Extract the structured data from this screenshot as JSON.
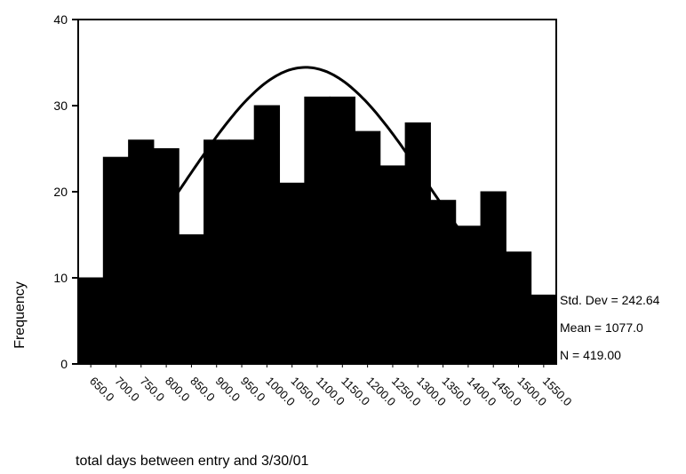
{
  "chart_data": {
    "type": "histogram",
    "x_label": "total days between entry and 3/30/01",
    "y_label": "Frequency",
    "bins": [
      625,
      675,
      725,
      775,
      825,
      875,
      925,
      975,
      1025,
      1075,
      1125,
      1175,
      1225,
      1275,
      1325,
      1375,
      1425,
      1475,
      1525,
      1575
    ],
    "values": [
      10,
      24,
      26,
      25,
      15,
      26,
      26,
      30,
      21,
      31,
      31,
      27,
      23,
      28,
      19,
      16,
      20,
      13,
      8
    ],
    "color": "#000000",
    "xlim": [
      625,
      1575
    ],
    "xticks": [
      {
        "value": 650,
        "label": "650.0"
      },
      {
        "value": 700,
        "label": "700.0"
      },
      {
        "value": 750,
        "label": "750.0"
      },
      {
        "value": 800,
        "label": "800.0"
      },
      {
        "value": 850,
        "label": "850.0"
      },
      {
        "value": 900,
        "label": "900.0"
      },
      {
        "value": 950,
        "label": "950.0"
      },
      {
        "value": 1000,
        "label": "1000.0"
      },
      {
        "value": 1050,
        "label": "1050.0"
      },
      {
        "value": 1100,
        "label": "1100.0"
      },
      {
        "value": 1150,
        "label": "1150.0"
      },
      {
        "value": 1200,
        "label": "1200.0"
      },
      {
        "value": 1250,
        "label": "1250.0"
      },
      {
        "value": 1300,
        "label": "1300.0"
      },
      {
        "value": 1350,
        "label": "1350.0"
      },
      {
        "value": 1400,
        "label": "1400.0"
      },
      {
        "value": 1450,
        "label": "1450.0"
      },
      {
        "value": 1500,
        "label": "1500.0"
      },
      {
        "value": 1550,
        "label": "1550.0"
      }
    ],
    "ylim": [
      0,
      40
    ],
    "yticks": [
      0,
      10,
      20,
      30,
      40
    ],
    "normal_curve": {
      "mean": 1077.0,
      "std_dev": 242.64,
      "n": 419
    },
    "annotations": [
      "Std. Dev = 242.64",
      "Mean = 1077.0",
      "N = 419.00"
    ]
  }
}
